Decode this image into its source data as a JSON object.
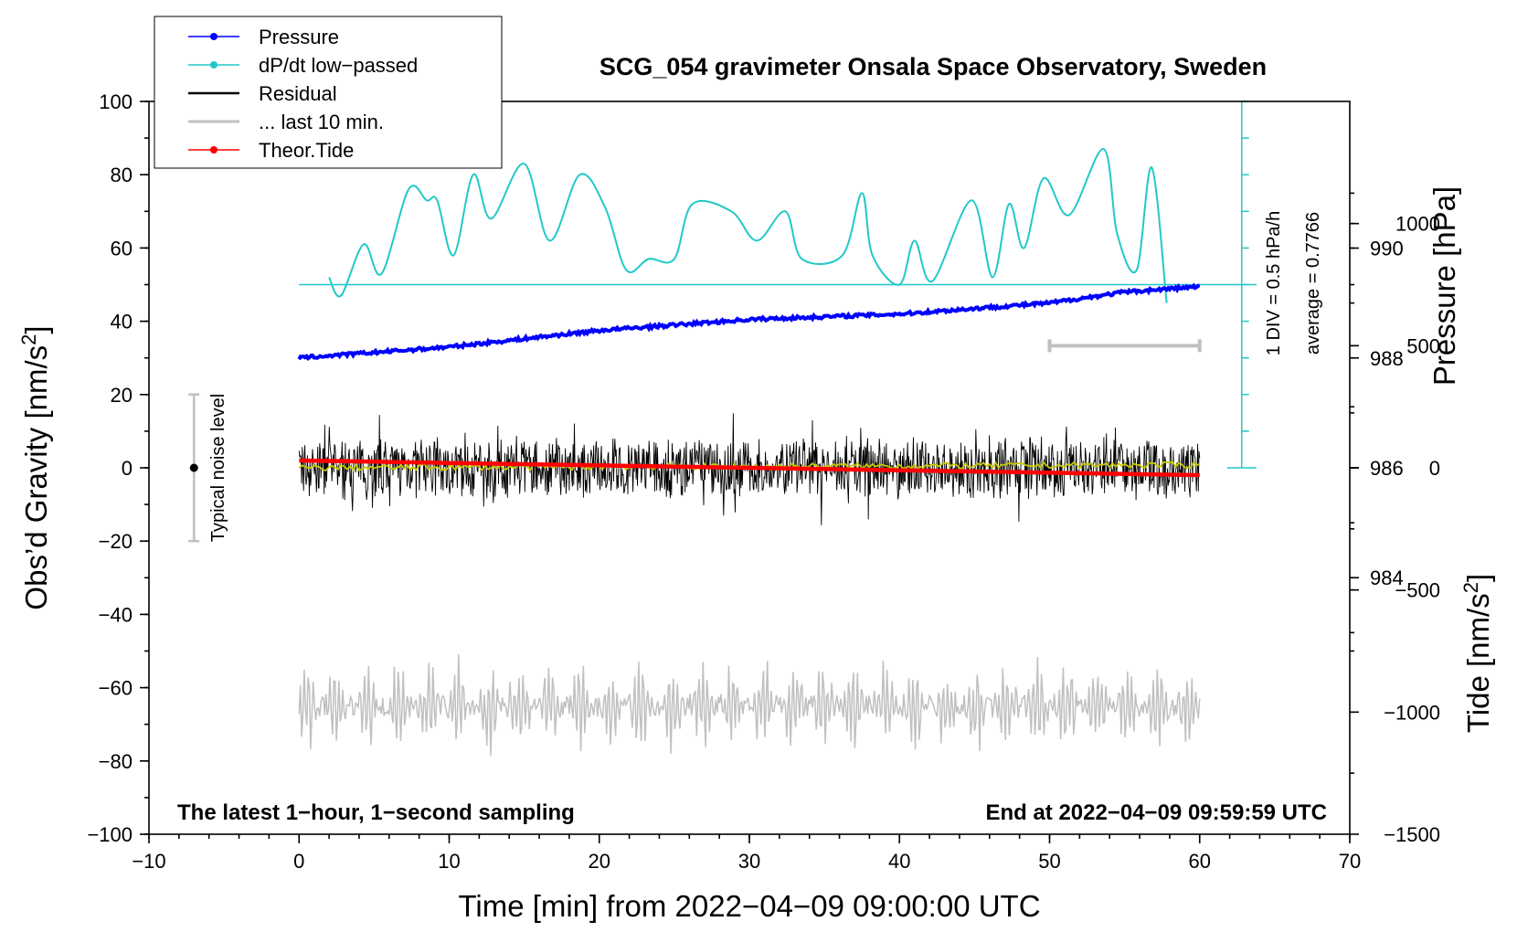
{
  "chart_data": {
    "type": "line",
    "title": "SCG_054 gravimeter Onsala Space Observatory, Sweden",
    "xlabel": "Time [min] from 2022−04−09 09:00:00 UTC",
    "ylabel": "Obs’d Gravity [nm/s",
    "ylabel_sup": "2",
    "ylabel_close": "]",
    "y2label": "Pressure [hPa]",
    "y3label": "Tide [nm/s",
    "y3label_sup": "2",
    "y3label_close": "]",
    "xlim": [
      -10,
      70
    ],
    "ylim": [
      -100,
      100
    ],
    "xticks": [
      -10,
      0,
      10,
      20,
      30,
      40,
      50,
      60,
      70
    ],
    "xtick_labels": [
      "−10",
      "0",
      "10",
      "20",
      "30",
      "40",
      "50",
      "60",
      "70"
    ],
    "yticks": [
      -100,
      -80,
      -60,
      -40,
      -20,
      0,
      20,
      40,
      60,
      80,
      100
    ],
    "ytick_labels": [
      "−100",
      "−80",
      "−60",
      "−40",
      "−20",
      "0",
      "20",
      "40",
      "60",
      "80",
      "100"
    ],
    "pressure_axis": {
      "ticks": [
        984,
        986,
        988,
        990
      ],
      "labels": [
        "984",
        "986",
        "988",
        "990"
      ],
      "range": [
        979.33,
        992.67
      ]
    },
    "tide_axis": {
      "ticks": [
        -1500,
        -1000,
        -500,
        0,
        500,
        1000
      ],
      "labels": [
        "−1500",
        "−1000",
        "−500",
        "0",
        "500",
        "1000"
      ],
      "range": [
        -1500,
        1500
      ]
    },
    "legend": {
      "position": "top-left",
      "entries": [
        "Pressure",
        "dP/dt low−passed",
        "Residual",
        "... last 10 min.",
        "Theor.Tide"
      ]
    },
    "colors": {
      "pressure": "#0000ff",
      "dpdt": "#22c8c8",
      "residual": "#000000",
      "residual_smooth": "#c8c800",
      "last10": "#c0c0c0",
      "tide": "#ff0000"
    },
    "series": [
      {
        "name": "Pressure",
        "unit": "hPa",
        "x": [
          0,
          10,
          20,
          30,
          40,
          50,
          55,
          60
        ],
        "values": [
          988.0,
          988.2,
          988.5,
          988.7,
          988.8,
          989.0,
          989.2,
          989.3
        ]
      },
      {
        "name": "dP/dt low−passed",
        "unit": "gravity-axis",
        "x": [
          2,
          2.8,
          4.3,
          5.5,
          7.3,
          8.5,
          9.2,
          10.3,
          11.6,
          12.8,
          15,
          16.7,
          18.7,
          20.4,
          21.8,
          23.3,
          25,
          26.2,
          28.8,
          30.5,
          32.4,
          33.5,
          36.2,
          37.5,
          38.2,
          40,
          41,
          42.2,
          44.8,
          46.2,
          47.3,
          48.3,
          49.6,
          51.3,
          53.6,
          54.5,
          55.8,
          56.8,
          57.8
        ],
        "values": [
          52,
          47,
          61,
          53,
          76,
          73,
          73,
          58,
          80,
          68,
          83,
          62,
          80,
          71,
          54,
          57,
          57,
          72,
          70,
          62,
          70,
          57,
          58,
          75,
          58,
          50,
          62,
          51,
          73,
          52,
          72,
          60,
          79,
          69,
          87,
          64,
          54,
          82,
          45
        ]
      },
      {
        "name": "Residual",
        "unit": "nm/s2",
        "x": [
          0,
          60
        ],
        "values": [
          0,
          0
        ]
      },
      {
        "name": "... last 10 min.",
        "unit": "offset",
        "x": [
          0,
          60
        ],
        "values": [
          -65,
          -65
        ]
      },
      {
        "name": "Theor.Tide",
        "unit": "nm/s2",
        "x": [
          0,
          60
        ],
        "values": [
          30,
          -30
        ]
      }
    ],
    "dpdt_baseline": 50,
    "dpdt_scale": {
      "div_label": "1 DIV = 0.5 hPa/h",
      "average_label": "average = 0.7766",
      "range": [
        0,
        100
      ]
    },
    "noise_marker": {
      "label": "Typical noise level",
      "x": -7,
      "range": [
        -20,
        20
      ]
    },
    "last10_bar": {
      "x_range": [
        50,
        60
      ],
      "tide_value": 500
    },
    "footer_left": "The latest 1−hour, 1−second sampling",
    "footer_right": "End at 2022−04−09 09:59:59 UTC"
  }
}
